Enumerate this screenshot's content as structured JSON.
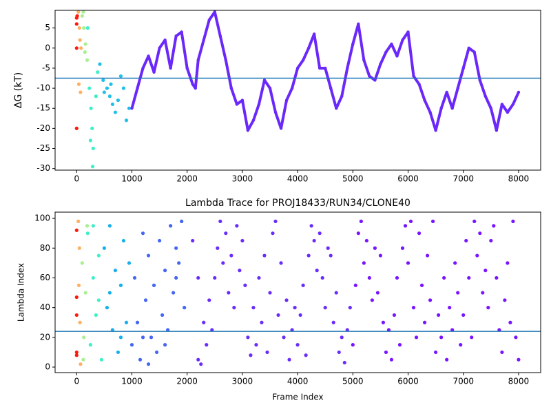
{
  "chart_data": [
    {
      "type": "scatter",
      "ylabel": "ΔG (kT)",
      "xlim": [
        -390,
        8400
      ],
      "ylim": [
        -30.4,
        9.4
      ],
      "xticks": [
        0,
        1000,
        2000,
        3000,
        4000,
        5000,
        6000,
        7000,
        8000
      ],
      "yticks": [
        -30,
        -25,
        -20,
        -15,
        -10,
        -5,
        0,
        5
      ],
      "hline": -7.5,
      "hline_color": "#1f77b4",
      "series": [
        {
          "color": "#ff1a0d",
          "x": [
            0,
            0,
            0,
            0,
            10
          ],
          "values": [
            7.5,
            6,
            0,
            -20,
            8
          ]
        },
        {
          "color": "#ffb060",
          "x": [
            30,
            50,
            60,
            40,
            70,
            80
          ],
          "values": [
            9,
            5,
            2,
            -9,
            -11,
            0
          ]
        },
        {
          "color": "#a8f090",
          "x": [
            100,
            130,
            160,
            190,
            120,
            150
          ],
          "values": [
            8,
            5,
            1,
            -3,
            9,
            -1
          ]
        },
        {
          "color": "#3ef0c8",
          "x": [
            200,
            230,
            260,
            280,
            300,
            290,
            250,
            350,
            380
          ],
          "values": [
            5,
            -10,
            -15,
            -20,
            -25,
            -29.5,
            -23,
            -12,
            -6
          ]
        },
        {
          "color": "#20c0e8",
          "x": [
            420,
            480,
            550,
            600,
            650,
            700,
            750,
            800,
            850,
            900,
            950,
            500,
            620
          ],
          "values": [
            -4,
            -8,
            -10,
            -12,
            -14,
            -16,
            -13,
            -7,
            -10,
            -18,
            -15,
            -11,
            -9
          ]
        },
        {
          "color": "#6a28fa",
          "connected": true,
          "x": [
            1000,
            1100,
            1200,
            1300,
            1400,
            1500,
            1600,
            1700,
            1800,
            1900,
            2000,
            2100,
            2150,
            2200,
            2300,
            2400,
            2500,
            2600,
            2700,
            2800,
            2900,
            3000,
            3100,
            3200,
            3300,
            3400,
            3500,
            3600,
            3700,
            3800,
            3900,
            4000,
            4100,
            4200,
            4300,
            4400,
            4500,
            4600,
            4700,
            4800,
            4900,
            5000,
            5100,
            5200,
            5300,
            5400,
            5500,
            5600,
            5700,
            5800,
            5900,
            6000,
            6100,
            6200,
            6300,
            6400,
            6500,
            6600,
            6700,
            6800,
            6900,
            7000,
            7100,
            7200,
            7300,
            7400,
            7500,
            7600,
            7700,
            7800,
            7900,
            8000
          ],
          "values": [
            -15,
            -10,
            -5,
            -2,
            -6,
            0,
            2,
            -5,
            3,
            4,
            -5,
            -9,
            -10,
            -3,
            2,
            7,
            9,
            3,
            -3,
            -10,
            -14,
            -13,
            -20.5,
            -18,
            -14,
            -8,
            -10,
            -16,
            -20,
            -13,
            -10,
            -5,
            -3,
            0,
            3.5,
            -5,
            -5,
            -10,
            -15,
            -12,
            -5,
            1,
            6,
            -3,
            -7,
            -8,
            -4,
            -1,
            1,
            -2,
            2,
            4,
            -7,
            -9,
            -13,
            -16,
            -20.5,
            -15,
            -11,
            -15,
            -10,
            -5,
            0,
            -1,
            -8,
            -12,
            -15,
            -20.5,
            -14,
            -16,
            -14,
            -11
          ]
        }
      ]
    },
    {
      "type": "scatter",
      "title": "Lambda Trace for PROJ18433/RUN34/CLONE40",
      "xlabel": "Frame Index",
      "ylabel": "Lambda Index",
      "xlim": [
        -390,
        8400
      ],
      "ylim": [
        -3.7,
        104.2
      ],
      "xticks": [
        0,
        1000,
        2000,
        3000,
        4000,
        5000,
        6000,
        7000,
        8000
      ],
      "yticks": [
        0,
        20,
        40,
        60,
        80,
        100
      ],
      "hline": 24,
      "hline_color": "#1f77b4",
      "series": [
        {
          "color": "#ff1a0d",
          "x": [
            0,
            0,
            0,
            0,
            0
          ],
          "values": [
            92,
            47,
            10,
            8,
            35
          ]
        },
        {
          "color": "#ffb060",
          "x": [
            30,
            50,
            60,
            40,
            70
          ],
          "values": [
            98,
            80,
            30,
            55,
            2
          ]
        },
        {
          "color": "#a8f090",
          "x": [
            100,
            130,
            160,
            190,
            120
          ],
          "values": [
            70,
            20,
            50,
            95,
            5
          ]
        },
        {
          "color": "#3ef0c8",
          "x": [
            200,
            250,
            300,
            350,
            400,
            450,
            300,
            400
          ],
          "values": [
            90,
            15,
            60,
            35,
            75,
            5,
            95,
            45
          ]
        },
        {
          "color": "#18b0ec",
          "x": [
            500,
            550,
            600,
            650,
            700,
            750,
            800,
            850,
            900,
            950,
            600,
            800
          ],
          "values": [
            80,
            40,
            95,
            25,
            65,
            10,
            55,
            85,
            30,
            70,
            50,
            20
          ]
        },
        {
          "color": "#4466f2",
          "x": [
            1000,
            1050,
            1100,
            1150,
            1200,
            1250,
            1300,
            1350,
            1400,
            1450,
            1500,
            1550,
            1600,
            1650,
            1700,
            1750,
            1800,
            1850,
            1900,
            1950,
            1200,
            1300,
            1600,
            1800
          ],
          "values": [
            15,
            60,
            30,
            5,
            90,
            45,
            75,
            20,
            55,
            10,
            85,
            35,
            65,
            25,
            95,
            50,
            80,
            70,
            98,
            40,
            20,
            2,
            15,
            60
          ]
        },
        {
          "color": "#6a2cfa",
          "x": [
            2100,
            2200,
            2200,
            2250,
            2300,
            2350,
            2400,
            2450,
            2500,
            2550,
            2600,
            2650,
            2700,
            2750,
            2800,
            2850,
            2900,
            2950,
            3000,
            3050,
            3100,
            3150,
            3200,
            3250,
            3300,
            3350,
            3400,
            3450,
            3500,
            3550,
            3600,
            3650,
            3700,
            3750,
            3800,
            3850,
            3900,
            3950,
            4000,
            4050,
            4100,
            4150,
            4200,
            4250,
            4300,
            4350,
            4400,
            4450,
            4500,
            4550,
            4600,
            4650,
            4700,
            4750,
            4800,
            4850,
            4900,
            4950
          ],
          "values": [
            85,
            60,
            5,
            2,
            30,
            15,
            45,
            25,
            60,
            80,
            98,
            70,
            90,
            50,
            75,
            40,
            95,
            65,
            85,
            55,
            20,
            8,
            40,
            15,
            60,
            30,
            75,
            10,
            50,
            90,
            98,
            35,
            70,
            20,
            45,
            5,
            25,
            40,
            15,
            35,
            55,
            8,
            75,
            95,
            85,
            65,
            90,
            60,
            40,
            80,
            75,
            30,
            50,
            10,
            20,
            3,
            25,
            40
          ]
        },
        {
          "color": "#7a14ff",
          "x": [
            5000,
            5050,
            5100,
            5150,
            5200,
            5250,
            5300,
            5350,
            5400,
            5450,
            5500,
            5550,
            5600,
            5650,
            5700,
            5750,
            5800,
            5850,
            5900,
            5950,
            6000,
            6050,
            6100,
            6150,
            6200,
            6250,
            6300,
            6350,
            6400,
            6450,
            6500,
            6550,
            6600,
            6650,
            6700,
            6750,
            6800,
            6850,
            6900,
            6950,
            7000,
            7050,
            7100,
            7150,
            7200,
            7250,
            7300,
            7350,
            7400,
            7450,
            7500,
            7550,
            7600,
            7650,
            7700,
            7750,
            7800,
            7850,
            7900,
            7950,
            8000
          ],
          "values": [
            15,
            55,
            90,
            98,
            70,
            85,
            60,
            45,
            80,
            50,
            75,
            30,
            10,
            25,
            5,
            35,
            60,
            15,
            80,
            95,
            70,
            98,
            40,
            20,
            90,
            55,
            30,
            75,
            45,
            98,
            10,
            35,
            20,
            60,
            5,
            40,
            25,
            70,
            50,
            15,
            35,
            85,
            60,
            20,
            98,
            75,
            90,
            50,
            65,
            40,
            85,
            95,
            60,
            25,
            10,
            45,
            70,
            30,
            98,
            20,
            5
          ]
        }
      ]
    }
  ]
}
